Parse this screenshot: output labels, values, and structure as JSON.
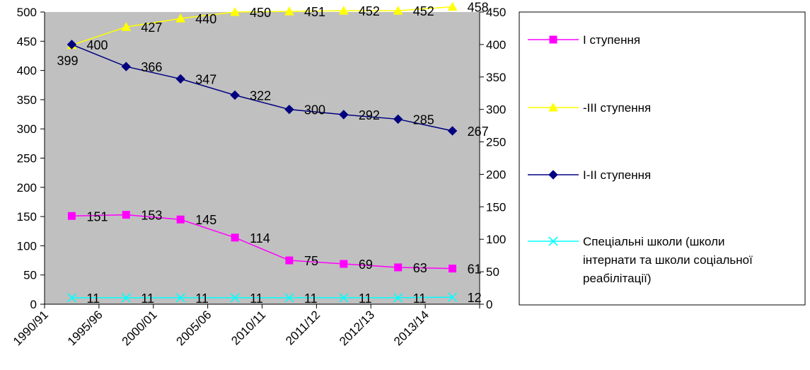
{
  "chart_data": {
    "type": "line",
    "categories": [
      "1990/91",
      "1995/96",
      "2000/01",
      "2005/06",
      "2010/11",
      "2011/12",
      "2012/13",
      "2013/14"
    ],
    "left_axis": {
      "min": 0,
      "max": 500,
      "ticks": [
        0,
        50,
        100,
        150,
        200,
        250,
        300,
        350,
        400,
        450,
        500
      ]
    },
    "right_axis": {
      "min": 0,
      "max": 450,
      "ticks": [
        0,
        50,
        100,
        150,
        200,
        250,
        300,
        350,
        400,
        450
      ]
    },
    "plot_background": "#C0C0C0",
    "series": [
      {
        "name": "I ступення",
        "axis": "left",
        "color": "#FF00FF",
        "marker": "square",
        "values": [
          151,
          153,
          145,
          114,
          75,
          69,
          63,
          61
        ]
      },
      {
        "name": "-III ступення",
        "axis": "right",
        "color": "#FFFF00",
        "marker": "triangle",
        "values": [
          399,
          427,
          440,
          450,
          451,
          452,
          452,
          458
        ]
      },
      {
        "name": "I-II ступення",
        "axis": "right",
        "color": "#000080",
        "marker": "diamond",
        "values": [
          400,
          366,
          347,
          322,
          300,
          292,
          285,
          267
        ]
      },
      {
        "name": "Спеціальні школи (школи інтернати та школи соціальної реабілітації)",
        "axis": "left",
        "color": "#00FFFF",
        "marker": "x",
        "values": [
          11,
          11,
          11,
          11,
          11,
          11,
          11,
          12
        ]
      }
    ],
    "legend": {
      "placement": "right",
      "entries": [
        {
          "lines": [
            "I ступення"
          ]
        },
        {
          "lines": [
            "-III ступення"
          ]
        },
        {
          "lines": [
            "I-II ступення"
          ]
        },
        {
          "lines": [
            "Спеціальні школи (школи",
            "інтернати та школи соціальної",
            "реабілітації)"
          ]
        }
      ]
    }
  }
}
